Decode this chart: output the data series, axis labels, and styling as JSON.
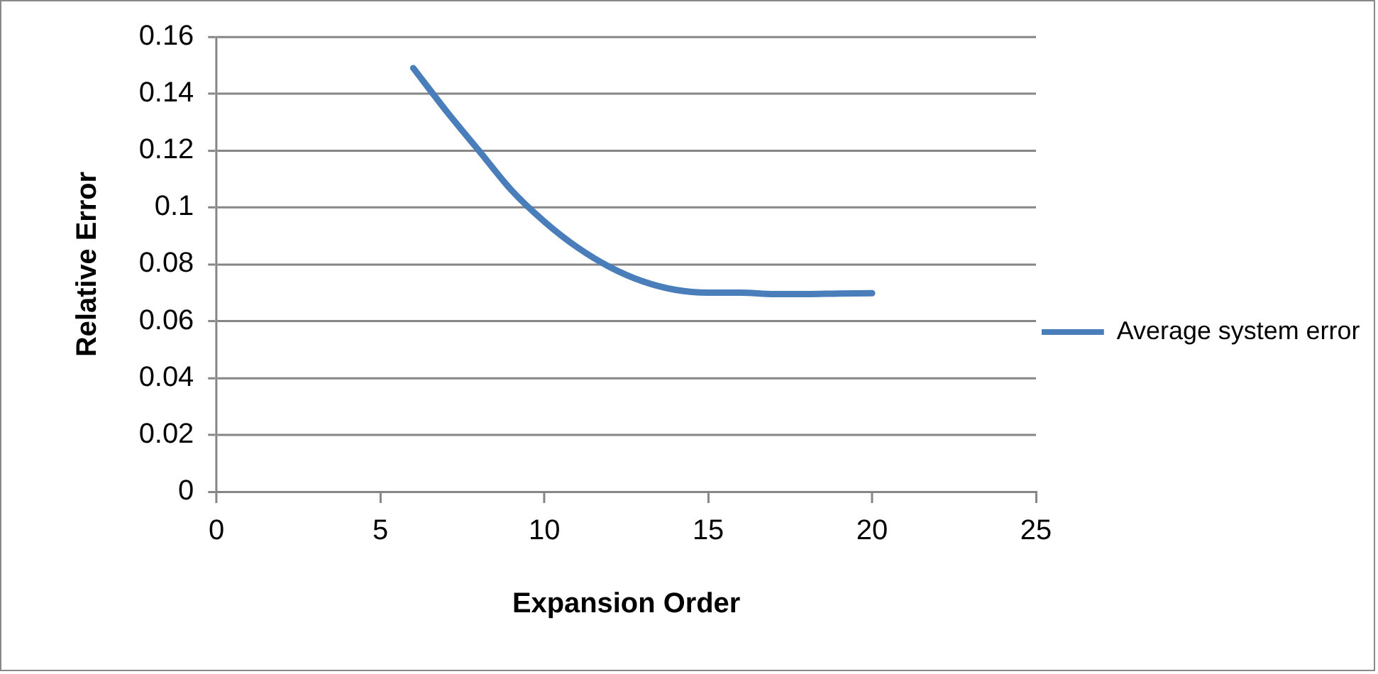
{
  "chart_data": {
    "type": "line",
    "xlabel": "Expansion Order",
    "ylabel": "Relative Error",
    "x": [
      6,
      7,
      8,
      9,
      10,
      11,
      12,
      13,
      14,
      15,
      16,
      17,
      18,
      19,
      20
    ],
    "series": [
      {
        "name": "Average system error",
        "color": "#4a7ebb",
        "values": [
          0.149,
          0.134,
          0.12,
          0.106,
          0.095,
          0.086,
          0.079,
          0.074,
          0.071,
          0.07,
          0.07,
          0.0695,
          0.0695,
          0.0697,
          0.0698
        ]
      }
    ],
    "xlim": [
      0,
      25
    ],
    "xticks": [
      0,
      5,
      10,
      15,
      20,
      25
    ],
    "ylim": [
      0,
      0.16
    ],
    "yticks": [
      0,
      0.02,
      0.04,
      0.06,
      0.08,
      0.1,
      0.12,
      0.14,
      0.16
    ],
    "grid": "y",
    "legend": "right",
    "marker": "none",
    "line_style": "solid"
  }
}
